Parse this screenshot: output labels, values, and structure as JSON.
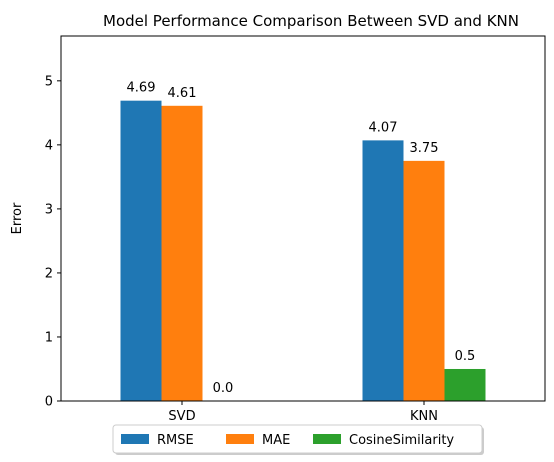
{
  "chart_data": {
    "type": "bar",
    "title": "Model Performance Comparison Between SVD and KNN",
    "xlabel": "",
    "ylabel": "Error",
    "categories": [
      "SVD",
      "KNN"
    ],
    "series": [
      {
        "name": "RMSE",
        "values": [
          4.69,
          4.07
        ],
        "labels": [
          "4.69",
          "4.07"
        ],
        "color": "#1f77b4"
      },
      {
        "name": "MAE",
        "values": [
          4.61,
          3.75
        ],
        "labels": [
          "4.61",
          "3.75"
        ],
        "color": "#ff7f0e"
      },
      {
        "name": "CosineSimilarity",
        "values": [
          0.0,
          0.5
        ],
        "labels": [
          "0.0",
          "0.5"
        ],
        "color": "#2ca02c"
      }
    ],
    "ylim": [
      0,
      5.7
    ],
    "yticks": [
      0,
      1,
      2,
      3,
      4,
      5
    ],
    "ytick_labels": [
      "0",
      "1",
      "2",
      "3",
      "4",
      "5"
    ],
    "grid": false,
    "legend": "bottom-center"
  }
}
